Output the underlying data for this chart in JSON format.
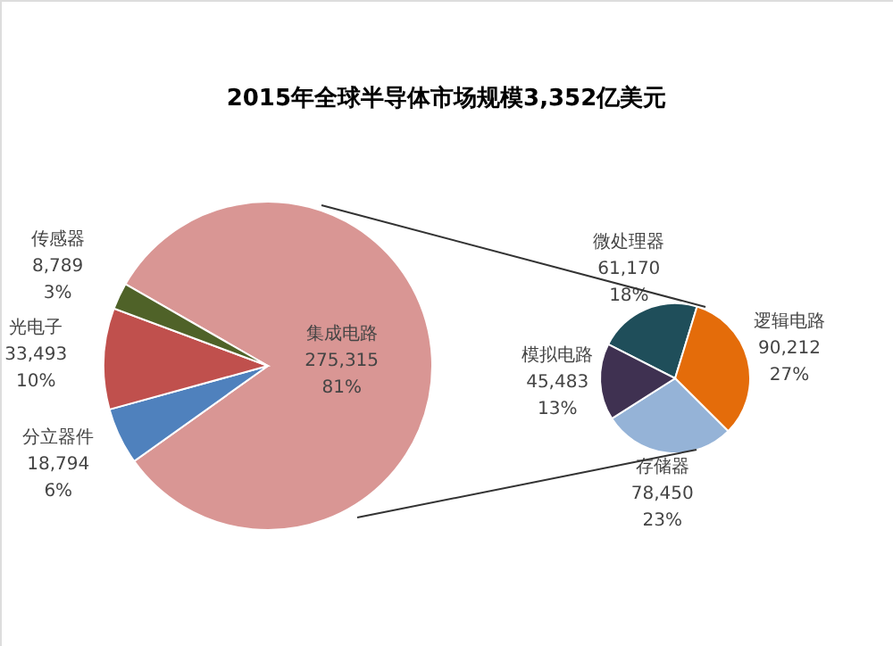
{
  "chart_data": [
    {
      "type": "pie",
      "title": "2015年全球半导体市场规模3,352亿美元",
      "categories": [
        "集成电路",
        "分立器件",
        "光电子",
        "传感器"
      ],
      "values": [
        275315,
        18794,
        33493,
        8789
      ],
      "colors": [
        "#d99694",
        "#4f81bd",
        "#c0504d",
        "#4f6228"
      ],
      "value_labels": [
        "275,315\n81%",
        "18,794\n6%",
        "33,493\n10%",
        "8,789\n3%"
      ]
    },
    {
      "type": "pie",
      "categories": [
        "微处理器",
        "逻辑电路",
        "存储器",
        "模拟电路"
      ],
      "values": [
        61170,
        90212,
        78450,
        45483
      ],
      "colors": [
        "#1f4e5a",
        "#e46c0a",
        "#95b3d7",
        "#3f3151"
      ],
      "value_labels": [
        "61,170\n18%",
        "90,212\n27%",
        "78,450\n23%",
        "45,483\n13%"
      ]
    }
  ]
}
